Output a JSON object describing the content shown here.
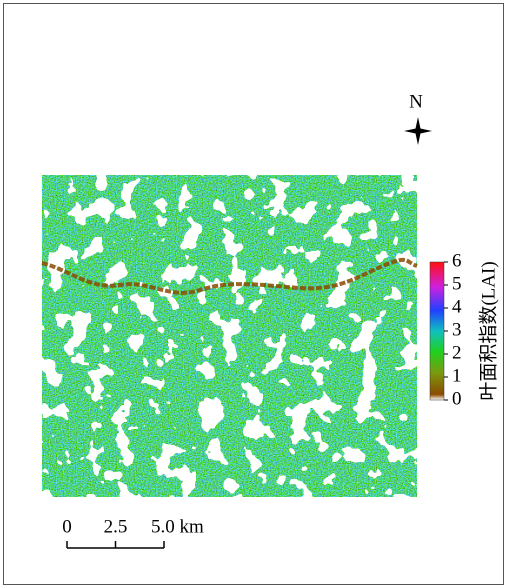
{
  "north_arrow": {
    "label": "N"
  },
  "legend": {
    "title": "叶面积指数(LAI)",
    "range": [
      0,
      6
    ],
    "ticks": [
      0,
      1,
      2,
      3,
      4,
      5,
      6
    ]
  },
  "scale_bar": {
    "range": [
      0,
      5
    ],
    "ticks": [
      0,
      2.5,
      {
        "value": 5,
        "label": "5.0 km"
      }
    ]
  }
}
